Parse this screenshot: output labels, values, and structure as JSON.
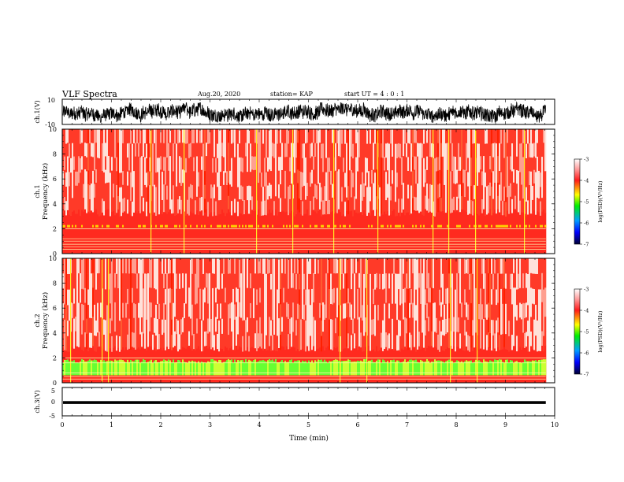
{
  "header": {
    "title": "VLF Spectra",
    "date": "Aug.20, 2020",
    "station": "station= KAP",
    "start": "start UT =  4 : 0  : 1"
  },
  "colors": {
    "spec_low_ch1": "#ff2a1f",
    "spec_high": "#ffd6cc",
    "spec_mid": "#f0ff40",
    "spec_ch2_green": "#66ff33"
  },
  "chart_data": [
    {
      "type": "line",
      "name": "ch1-waveform",
      "ylabel": "ch.1(V)",
      "ylim": [
        -10,
        10
      ],
      "yticks": [
        "10",
        "-10"
      ],
      "xlim": [
        0,
        10
      ],
      "data_end_min": 9.82,
      "description_series": "dense oscillating waveform roughly between -8 and 7 V"
    },
    {
      "type": "heatmap",
      "name": "ch1-spectrogram",
      "ylabel_top": "ch.1",
      "ylabel": "Frequency  (kHz)",
      "ylim": [
        0,
        10
      ],
      "yticks": [
        "0",
        "2",
        "4",
        "6",
        "8",
        "10"
      ],
      "xlim": [
        0,
        10
      ],
      "data_end_min": 9.82,
      "colorbar": {
        "label": "log(PSD)(V²/Hz)",
        "range": [
          -7,
          -3
        ],
        "ticks": [
          "-3",
          "-4",
          "-5",
          "-6",
          "-7"
        ]
      }
    },
    {
      "type": "heatmap",
      "name": "ch2-spectrogram",
      "ylabel_top": "ch.2",
      "ylabel": "Frequency  (kHz)",
      "ylim": [
        0,
        10
      ],
      "yticks": [
        "0",
        "2",
        "4",
        "6",
        "8",
        "10"
      ],
      "xlim": [
        0,
        10
      ],
      "data_end_min": 9.82,
      "colorbar": {
        "label": "log(PSD)(V²/Hz)",
        "range": [
          -7,
          -3
        ],
        "ticks": [
          "-3",
          "-4",
          "-5",
          "-6",
          "-7"
        ]
      }
    },
    {
      "type": "line",
      "name": "ch3-waveform",
      "ylabel": "ch.3(V)",
      "ylim": [
        -5,
        5
      ],
      "yticks": [
        "5",
        "0",
        "-5"
      ],
      "xlim": [
        0,
        10
      ],
      "xlabel": "Time  (min)",
      "xticks": [
        "0",
        "1",
        "2",
        "3",
        "4",
        "5",
        "6",
        "7",
        "8",
        "9",
        "10"
      ],
      "data_end_min": 9.82,
      "level_range": [
        -0.8,
        0.2
      ]
    }
  ]
}
